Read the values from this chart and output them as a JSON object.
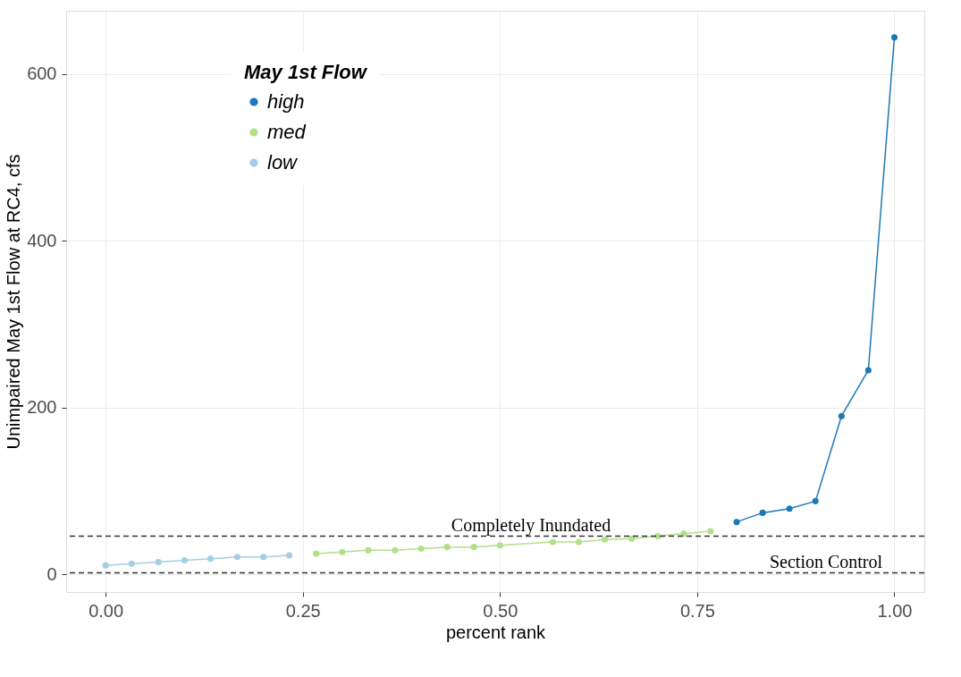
{
  "chart_data": {
    "type": "line",
    "xlabel": "percent rank",
    "ylabel": "Unimpaired May 1st Flow at RC4, cfs",
    "legend_title": "May 1st Flow",
    "xlim": [
      -0.05,
      1.038
    ],
    "ylim": [
      -21,
      676
    ],
    "xticks": [
      {
        "value": 0,
        "label": "0.00"
      },
      {
        "value": 0.25,
        "label": "0.25"
      },
      {
        "value": 0.5,
        "label": "0.50"
      },
      {
        "value": 0.75,
        "label": "0.75"
      },
      {
        "value": 1,
        "label": "1.00"
      }
    ],
    "yticks": [
      0,
      200,
      400,
      600
    ],
    "grid": true,
    "legend": "top left",
    "marker": "circle",
    "line_style": "solid",
    "series": [
      {
        "name": "high",
        "color": "#1f78b4",
        "x": [
          0.8,
          0.833,
          0.867,
          0.9,
          0.933,
          0.967,
          1.0
        ],
        "values": [
          63,
          74,
          79,
          88,
          190,
          245,
          644
        ]
      },
      {
        "name": "med",
        "color": "#b2df8a",
        "x": [
          0.267,
          0.3,
          0.333,
          0.367,
          0.4,
          0.433,
          0.467,
          0.5,
          0.567,
          0.6,
          0.633,
          0.667,
          0.7,
          0.733,
          0.767
        ],
        "values": [
          25,
          27,
          29,
          29,
          31,
          33,
          33,
          35,
          39,
          39,
          42,
          43,
          46,
          49,
          52
        ]
      },
      {
        "name": "low",
        "color": "#a6cee3",
        "x": [
          0,
          0.033,
          0.067,
          0.1,
          0.133,
          0.167,
          0.2,
          0.233
        ],
        "values": [
          11,
          13,
          15,
          17,
          19,
          21,
          21,
          23
        ]
      }
    ],
    "ref_lines": [
      {
        "axis": "y",
        "value": 46,
        "color": "#333333",
        "line_style": "dashed",
        "label": "Completely Inundated"
      },
      {
        "axis": "y",
        "value": 2,
        "color": "#333333",
        "line_style": "dashed",
        "label": "Section Control"
      }
    ]
  }
}
